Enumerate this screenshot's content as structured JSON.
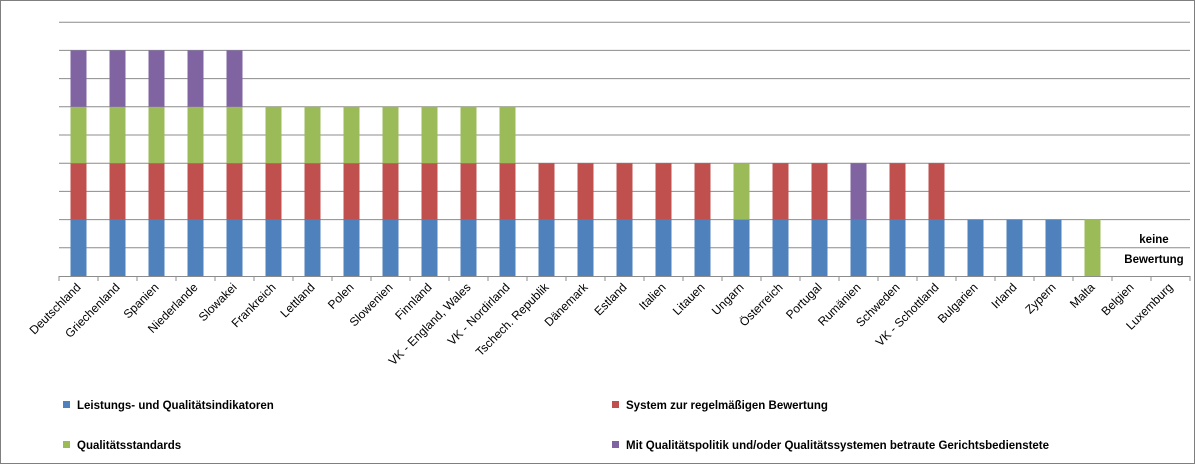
{
  "chart_data": {
    "type": "bar",
    "stacked": true,
    "categories": [
      "Deutschland",
      "Griechenland",
      "Spanien",
      "Niederlande",
      "Slowakei",
      "Frankreich",
      "Lettland",
      "Polen",
      "Slowenien",
      "Finnland",
      "VK - England,  Wales",
      "VK - Nordirland",
      "Tschech. Republik",
      "Dänemark",
      "Estland",
      "Italien",
      "Litauen",
      "Ungarn",
      "Österreich",
      "Portugal",
      "Rumänien",
      "Schweden",
      "VK - Schottland",
      "Bulgarien",
      "Irland",
      "Zypern",
      "Malta",
      "Belgien",
      "Luxemburg"
    ],
    "ylim": [
      0,
      5
    ],
    "grid": true,
    "legend_position": "bottom",
    "series": [
      {
        "name": "Leistungs- und Qualitätsindikatoren",
        "color": "#4f81bd",
        "values": [
          1,
          1,
          1,
          1,
          1,
          1,
          1,
          1,
          1,
          1,
          1,
          1,
          1,
          1,
          1,
          1,
          1,
          1,
          1,
          1,
          1,
          1,
          1,
          1,
          1,
          1,
          0,
          0,
          0
        ]
      },
      {
        "name": "System zur regelmäßigen Bewertung",
        "color": "#c0504d",
        "values": [
          1,
          1,
          1,
          1,
          1,
          1,
          1,
          1,
          1,
          1,
          1,
          1,
          1,
          1,
          1,
          1,
          1,
          0,
          1,
          1,
          0,
          1,
          1,
          0,
          0,
          0,
          0,
          0,
          0
        ]
      },
      {
        "name": "Qualitätsstandards",
        "color": "#9bbb59",
        "values": [
          1,
          1,
          1,
          1,
          1,
          1,
          1,
          1,
          1,
          1,
          1,
          1,
          0,
          0,
          0,
          0,
          0,
          1,
          0,
          0,
          0,
          0,
          0,
          0,
          0,
          0,
          1,
          0,
          0
        ]
      },
      {
        "name": "Mit Qualitätspolitik und/oder Qualitätssystemen betraute Gerichtsbedienstete",
        "color": "#8064a2",
        "values": [
          1,
          1,
          1,
          1,
          1,
          0,
          0,
          0,
          0,
          0,
          0,
          0,
          0,
          0,
          0,
          0,
          0,
          0,
          0,
          0,
          1,
          0,
          0,
          0,
          0,
          0,
          0,
          0,
          0
        ]
      }
    ],
    "annotation": {
      "line1": "keine",
      "line2": "Bewertung"
    }
  }
}
